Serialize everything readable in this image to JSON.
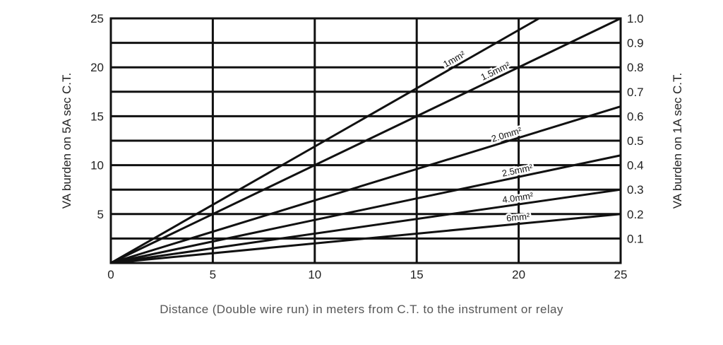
{
  "chart_data": {
    "type": "line",
    "xlabel": "Distance (Double wire run) in meters from C.T. to the instrument or relay",
    "ylabel": "VA burden on 5A sec C.T.",
    "y2label": "VA burden on 1A sec C.T.",
    "xlim": [
      0,
      25
    ],
    "ylim": [
      0,
      25
    ],
    "y2lim": [
      0,
      1.0
    ],
    "xticks": [
      "0",
      "5",
      "10",
      "15",
      "20",
      "25"
    ],
    "yticks": [
      "5",
      "10",
      "15",
      "20",
      "25"
    ],
    "y2ticks": [
      "0.1",
      "0.2",
      "0.3",
      "0.4",
      "0.5",
      "0.6",
      "0.7",
      "0.8",
      "0.9",
      "1.0"
    ],
    "grid": true,
    "series": [
      {
        "name": "1mm²",
        "x": [
          0,
          21
        ],
        "y": [
          0,
          25
        ]
      },
      {
        "name": "1.5mm²",
        "x": [
          0,
          25
        ],
        "y": [
          0,
          25
        ]
      },
      {
        "name": "2.0mm²",
        "x": [
          0,
          25
        ],
        "y": [
          0,
          16
        ]
      },
      {
        "name": "2.5mm²",
        "x": [
          0,
          25
        ],
        "y": [
          0,
          11
        ]
      },
      {
        "name": "4.0mm²",
        "x": [
          0,
          25
        ],
        "y": [
          0,
          7.5
        ]
      },
      {
        "name": "6mm²",
        "x": [
          0,
          25
        ],
        "y": [
          0,
          5
        ]
      }
    ],
    "label_positions_x": [
      17,
      19,
      19.5,
      20,
      20,
      20
    ]
  }
}
